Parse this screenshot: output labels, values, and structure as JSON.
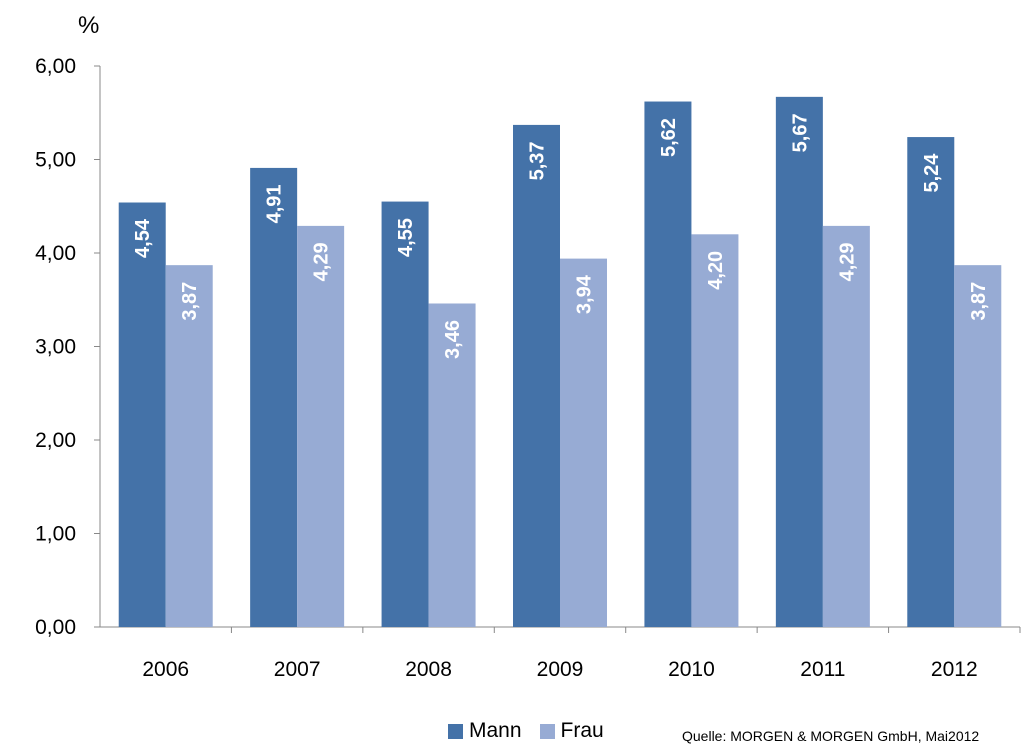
{
  "chart_data": {
    "type": "bar",
    "unit": "%",
    "categories": [
      "2006",
      "2007",
      "2008",
      "2009",
      "2010",
      "2011",
      "2012"
    ],
    "series": [
      {
        "name": "Mann",
        "color": "#4472A8",
        "values": [
          4.54,
          4.91,
          4.55,
          5.37,
          5.62,
          5.67,
          5.24
        ],
        "labels": [
          "4,54",
          "4,91",
          "4,55",
          "5,37",
          "5,62",
          "5,67",
          "5,24"
        ]
      },
      {
        "name": "Frau",
        "color": "#97ABD4",
        "values": [
          3.87,
          4.29,
          3.46,
          3.94,
          4.2,
          4.29,
          3.87
        ],
        "labels": [
          "3,87",
          "4,29",
          "3,46",
          "3,94",
          "4,20",
          "4,29",
          "3,87"
        ]
      }
    ],
    "y_ticks": [
      "0,00",
      "1,00",
      "2,00",
      "3,00",
      "4,00",
      "5,00",
      "6,00"
    ],
    "ylim": [
      0,
      6
    ],
    "grid": false,
    "legend_position": "bottom",
    "source": "Quelle: MORGEN & MORGEN GmbH,  Mai2012"
  }
}
